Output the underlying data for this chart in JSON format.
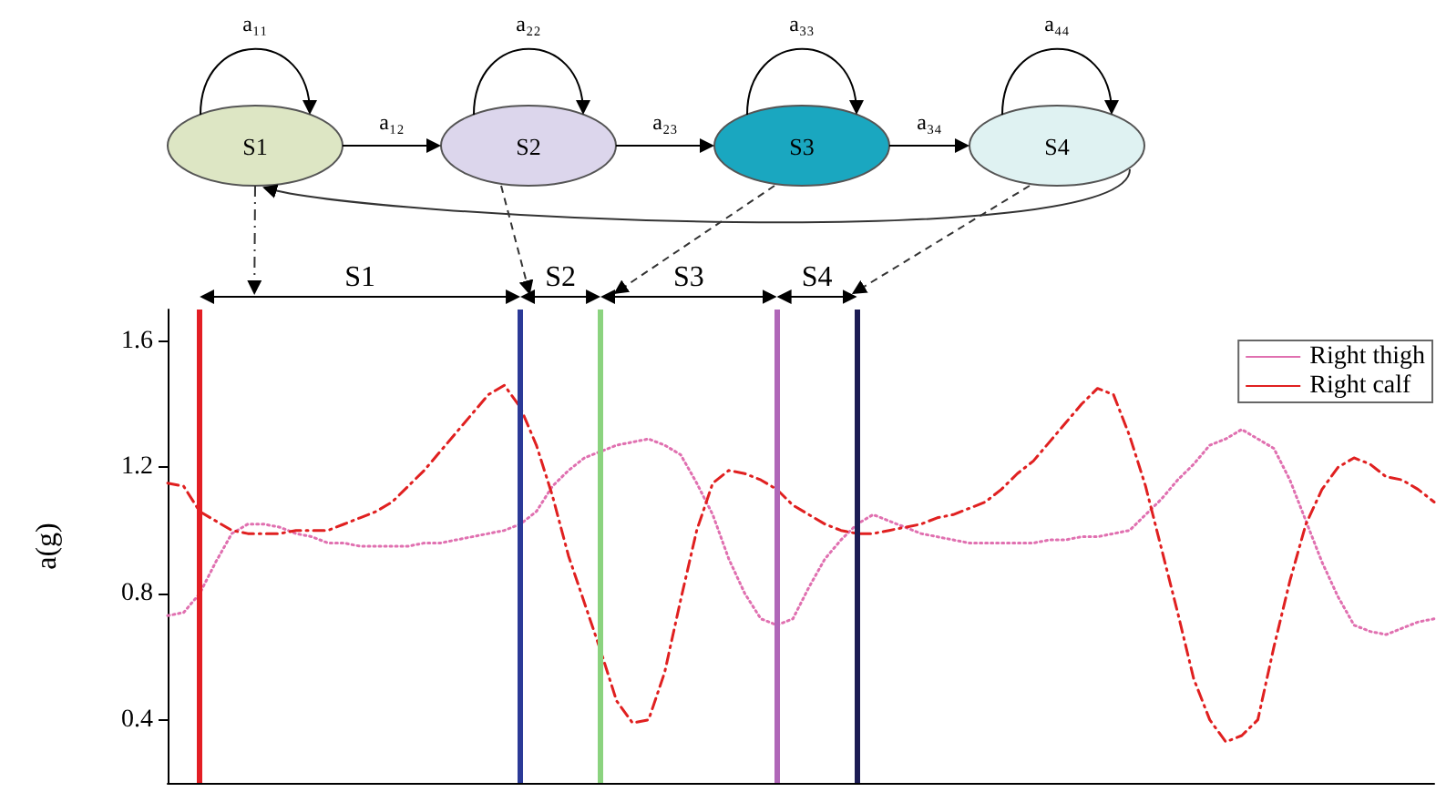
{
  "chart_data": {
    "type": "line",
    "ylabel": "a(g)",
    "annotations": [
      "S1",
      "S2",
      "S3",
      "S4",
      "a₁₁",
      "a₂₂",
      "a₃₃",
      "a₄₄",
      "a₁₂",
      "a₂₃",
      "a₃₄",
      "S1",
      "S2",
      "S3",
      "S4"
    ],
    "categories": [
      null,
      null,
      null,
      null,
      null,
      null,
      null,
      null,
      null,
      null,
      null,
      null,
      null,
      null,
      null,
      null,
      null,
      null,
      null,
      null,
      null,
      null,
      null,
      null,
      null,
      null,
      null,
      null,
      null,
      null,
      null,
      null,
      null,
      null,
      null,
      null,
      null,
      null,
      null,
      null,
      null,
      null,
      null,
      null,
      null,
      null,
      null,
      null,
      null,
      null,
      null,
      null,
      null,
      null,
      null,
      null,
      null,
      null,
      null,
      null,
      null,
      null,
      null,
      null,
      null,
      null,
      null,
      null,
      null,
      null,
      null,
      null,
      null,
      null,
      null,
      null,
      null,
      null,
      null,
      null
    ],
    "ylim": [
      0.2,
      1.7
    ],
    "yticks": [
      0.4,
      0.8,
      1.2,
      1.6
    ],
    "tick_labels": "y",
    "legend": "top right",
    "marker": "none",
    "series": [
      {
        "name": "Right thigh",
        "color": "#e070b0",
        "line_style": "dotted",
        "values": [
          0.73,
          0.74,
          0.8,
          0.9,
          0.99,
          1.02,
          1.02,
          1.01,
          0.99,
          0.98,
          0.96,
          0.96,
          0.95,
          0.95,
          0.95,
          0.95,
          0.96,
          0.96,
          0.97,
          0.98,
          0.99,
          1.0,
          1.02,
          1.06,
          1.14,
          1.19,
          1.23,
          1.25,
          1.27,
          1.28,
          1.29,
          1.27,
          1.24,
          1.15,
          1.05,
          0.91,
          0.8,
          0.72,
          0.7,
          0.72,
          0.82,
          0.91,
          0.97,
          1.02,
          1.05,
          1.03,
          1.01,
          0.99,
          0.98,
          0.97,
          0.96,
          0.96,
          0.96,
          0.96,
          0.96,
          0.97,
          0.97,
          0.98,
          0.98,
          0.99,
          1.0,
          1.05,
          1.1,
          1.16,
          1.21,
          1.27,
          1.29,
          1.32,
          1.29,
          1.26,
          1.16,
          1.03,
          0.9,
          0.79,
          0.7,
          0.68,
          0.67,
          0.69,
          0.71,
          0.72
        ]
      },
      {
        "name": "Right calf",
        "color": "#e02020",
        "line_style": "dashed",
        "values": [
          1.15,
          1.14,
          1.06,
          1.03,
          1.0,
          0.99,
          0.99,
          0.99,
          1.0,
          1.0,
          1.0,
          1.02,
          1.04,
          1.06,
          1.09,
          1.14,
          1.19,
          1.25,
          1.31,
          1.37,
          1.43,
          1.46,
          1.39,
          1.27,
          1.11,
          0.92,
          0.77,
          0.62,
          0.46,
          0.39,
          0.4,
          0.55,
          0.78,
          1.0,
          1.15,
          1.19,
          1.18,
          1.16,
          1.13,
          1.08,
          1.05,
          1.02,
          1.0,
          0.99,
          0.99,
          1.0,
          1.01,
          1.02,
          1.04,
          1.05,
          1.07,
          1.09,
          1.13,
          1.18,
          1.22,
          1.28,
          1.34,
          1.4,
          1.45,
          1.43,
          1.3,
          1.14,
          0.94,
          0.74,
          0.53,
          0.4,
          0.33,
          0.35,
          0.4,
          0.63,
          0.84,
          1.02,
          1.13,
          1.2,
          1.23,
          1.21,
          1.17,
          1.16,
          1.13,
          1.09
        ]
      }
    ]
  }
}
